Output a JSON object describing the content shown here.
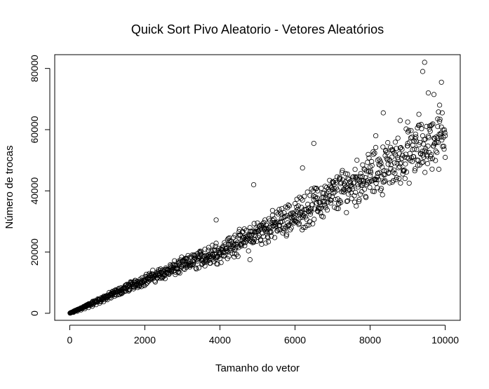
{
  "chart_data": {
    "type": "scatter",
    "title": "Quick Sort Pivo Aleatorio - Vetores Aleatórios",
    "xlabel": "Tamanho do vetor",
    "ylabel": "Número de trocas",
    "xlim": [
      -400,
      10400
    ],
    "ylim": [
      -2300,
      84500
    ],
    "xticks": [
      0,
      2000,
      4000,
      6000,
      8000,
      10000
    ],
    "xtick_labels": [
      "0",
      "2000",
      "4000",
      "6000",
      "8000",
      "10000"
    ],
    "yticks": [
      0,
      20000,
      40000,
      60000,
      80000
    ],
    "ytick_labels": [
      "0",
      "20000",
      "40000",
      "60000",
      "80000"
    ],
    "grid": false,
    "legend": "none",
    "marker": "open-circle",
    "trend": {
      "description": "y grows roughly as n·log(n)",
      "y_at_x": [
        [
          0,
          0
        ],
        [
          2000,
          11000
        ],
        [
          4000,
          20000
        ],
        [
          6000,
          32000
        ],
        [
          8000,
          45000
        ],
        [
          10000,
          58000
        ]
      ]
    },
    "points": [
      [
        10,
        50
      ],
      [
        100,
        300
      ],
      [
        200,
        700
      ],
      [
        300,
        1100
      ],
      [
        400,
        1500
      ],
      [
        500,
        1900
      ],
      [
        600,
        2300
      ],
      [
        700,
        2800
      ],
      [
        800,
        3300
      ],
      [
        900,
        3800
      ],
      [
        1000,
        4400
      ],
      [
        1100,
        5000
      ],
      [
        1200,
        5600
      ],
      [
        1300,
        6100
      ],
      [
        1400,
        6700
      ],
      [
        1500,
        7300
      ],
      [
        1600,
        7900
      ],
      [
        1700,
        8500
      ],
      [
        1800,
        9100
      ],
      [
        1900,
        9800
      ],
      [
        2000,
        10500
      ],
      [
        2100,
        11100
      ],
      [
        2200,
        11800
      ],
      [
        2300,
        12400
      ],
      [
        2400,
        13000
      ],
      [
        2500,
        13700
      ],
      [
        2600,
        14300
      ],
      [
        2700,
        15000
      ],
      [
        2800,
        15600
      ],
      [
        2900,
        16300
      ],
      [
        3000,
        17000
      ],
      [
        3100,
        17600
      ],
      [
        3200,
        18300
      ],
      [
        3300,
        18900
      ],
      [
        3400,
        19500
      ],
      [
        3500,
        20200
      ],
      [
        3600,
        20900
      ],
      [
        3700,
        21500
      ],
      [
        3800,
        22200
      ],
      [
        3900,
        22900
      ],
      [
        4000,
        20000
      ],
      [
        4200,
        24000
      ],
      [
        4400,
        25500
      ],
      [
        4600,
        26500
      ],
      [
        4800,
        28000
      ],
      [
        5000,
        29500
      ],
      [
        5200,
        30500
      ],
      [
        5400,
        32000
      ],
      [
        5600,
        33000
      ],
      [
        5800,
        34500
      ],
      [
        6000,
        32000
      ],
      [
        6200,
        37000
      ],
      [
        6400,
        38500
      ],
      [
        6600,
        40000
      ],
      [
        6800,
        41500
      ],
      [
        7000,
        43000
      ],
      [
        7200,
        44000
      ],
      [
        7400,
        45500
      ],
      [
        7600,
        47000
      ],
      [
        7800,
        48500
      ],
      [
        8000,
        45000
      ],
      [
        8200,
        50000
      ],
      [
        8400,
        51500
      ],
      [
        8600,
        53000
      ],
      [
        8800,
        54000
      ],
      [
        9000,
        55500
      ],
      [
        9200,
        57000
      ],
      [
        9400,
        58000
      ],
      [
        9600,
        59500
      ],
      [
        9800,
        61000
      ],
      [
        10000,
        58000
      ],
      [
        3900,
        30500
      ],
      [
        4900,
        42000
      ],
      [
        6200,
        47500
      ],
      [
        6500,
        55500
      ],
      [
        8350,
        65500
      ],
      [
        8150,
        58000
      ],
      [
        9400,
        79000
      ],
      [
        9450,
        82000
      ],
      [
        9550,
        72000
      ],
      [
        9700,
        71500
      ],
      [
        9900,
        75500
      ],
      [
        9850,
        68000
      ],
      [
        9300,
        65000
      ],
      [
        9000,
        62500
      ],
      [
        8800,
        63000
      ],
      [
        4800,
        17500
      ],
      [
        6100,
        29000
      ]
    ]
  }
}
